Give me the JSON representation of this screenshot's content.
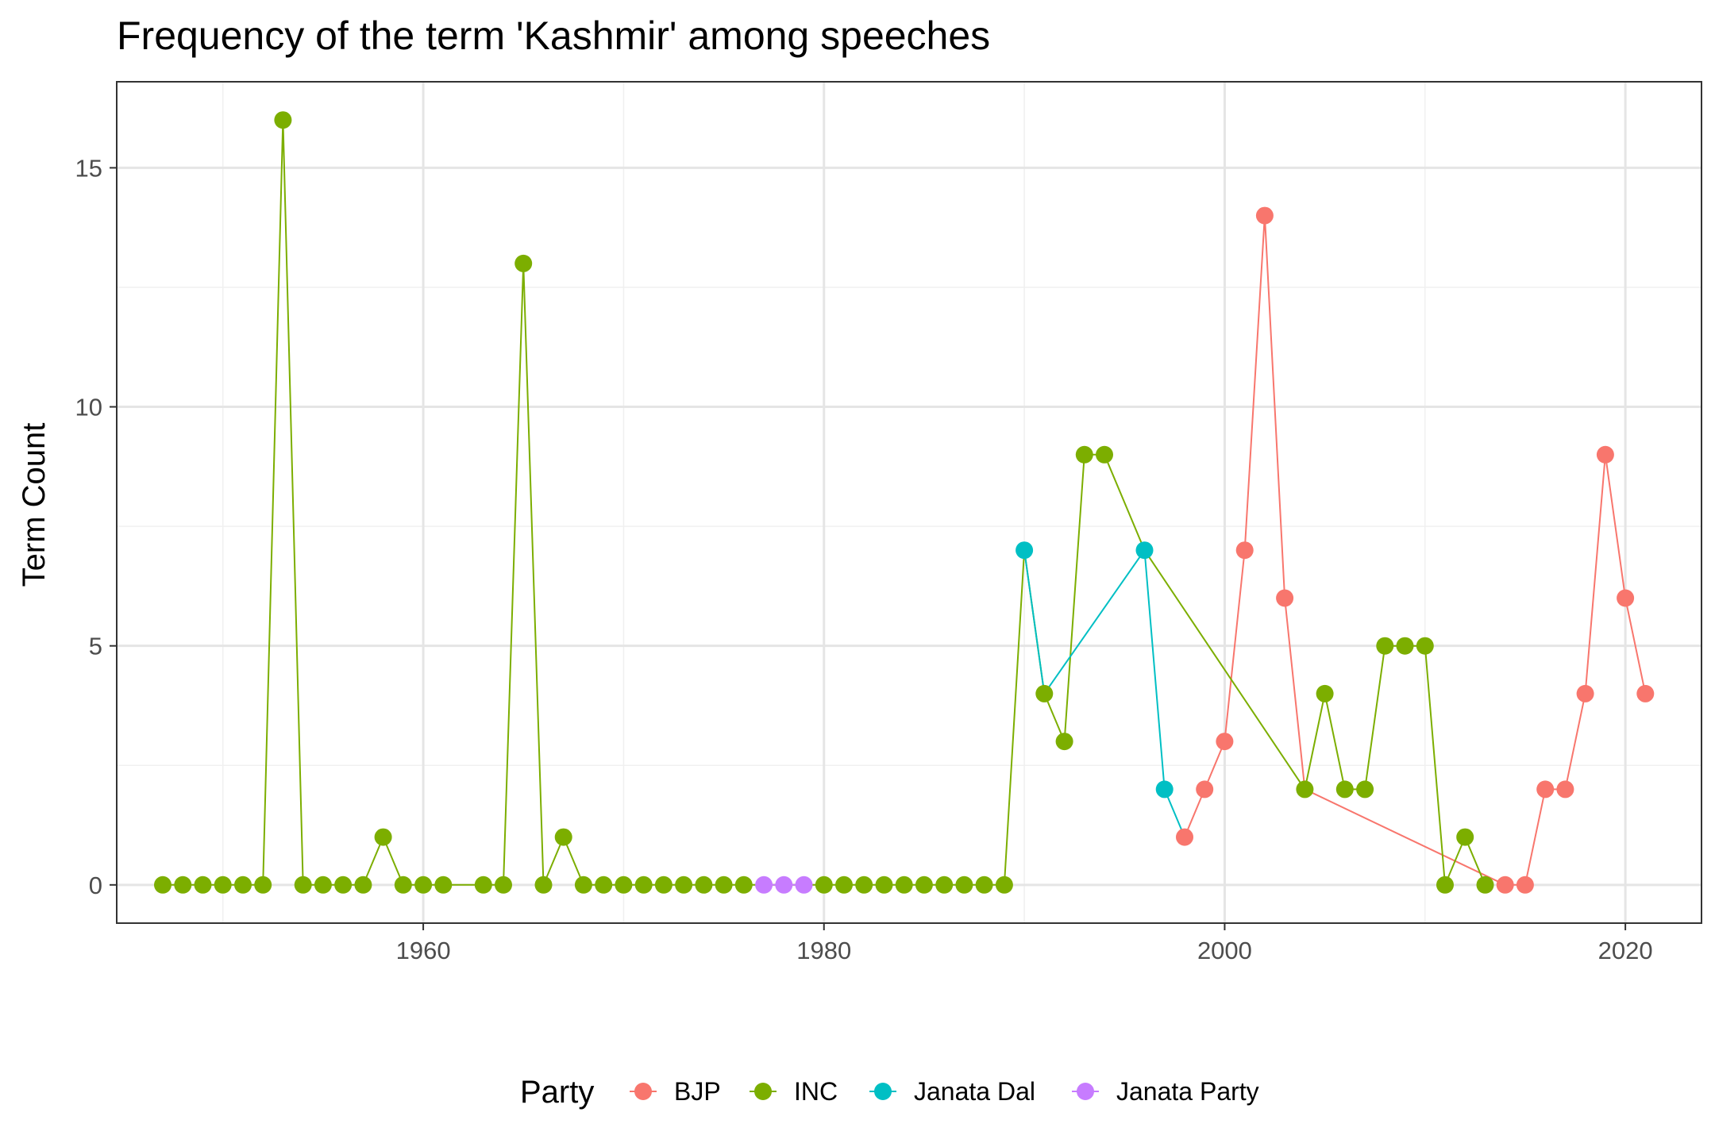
{
  "chart_data": {
    "type": "line",
    "title": "Frequency of the term 'Kashmir' among speeches",
    "xlabel": "",
    "ylabel": "Term Count",
    "xlim": [
      1944.7,
      2023.8
    ],
    "ylim": [
      -0.8,
      16.8
    ],
    "x_ticks": [
      1960,
      1980,
      2000,
      2020
    ],
    "y_ticks": [
      0,
      5,
      10,
      15
    ],
    "grid": true,
    "legend": {
      "title": "Party",
      "position": "bottom",
      "entries": [
        {
          "name": "BJP",
          "color": "#F8766D"
        },
        {
          "name": "INC",
          "color": "#7CAE00"
        },
        {
          "name": "Janata Dal",
          "color": "#00BFC4"
        },
        {
          "name": "Janata Party",
          "color": "#C77CFF"
        }
      ]
    },
    "series": [
      {
        "name": "BJP",
        "color": "#F8766D",
        "points": [
          [
            1998,
            1
          ],
          [
            1999,
            2
          ],
          [
            2000,
            3
          ],
          [
            2001,
            7
          ],
          [
            2002,
            14
          ],
          [
            2003,
            6
          ],
          [
            2004,
            2
          ],
          [
            2014,
            0
          ],
          [
            2015,
            0
          ],
          [
            2016,
            2
          ],
          [
            2017,
            2
          ],
          [
            2018,
            4
          ],
          [
            2019,
            9
          ],
          [
            2020,
            6
          ],
          [
            2021,
            4
          ]
        ]
      },
      {
        "name": "INC",
        "color": "#7CAE00",
        "points": [
          [
            1947,
            0
          ],
          [
            1948,
            0
          ],
          [
            1949,
            0
          ],
          [
            1950,
            0
          ],
          [
            1951,
            0
          ],
          [
            1952,
            0
          ],
          [
            1953,
            16
          ],
          [
            1954,
            0
          ],
          [
            1955,
            0
          ],
          [
            1956,
            0
          ],
          [
            1957,
            0
          ],
          [
            1958,
            1
          ],
          [
            1959,
            0
          ],
          [
            1960,
            0
          ],
          [
            1961,
            0
          ],
          [
            1963,
            0
          ],
          [
            1964,
            0
          ],
          [
            1965,
            13
          ],
          [
            1966,
            0
          ],
          [
            1967,
            1
          ],
          [
            1968,
            0
          ],
          [
            1969,
            0
          ],
          [
            1970,
            0
          ],
          [
            1971,
            0
          ],
          [
            1972,
            0
          ],
          [
            1973,
            0
          ],
          [
            1974,
            0
          ],
          [
            1975,
            0
          ],
          [
            1976,
            0
          ],
          [
            1980,
            0
          ],
          [
            1981,
            0
          ],
          [
            1982,
            0
          ],
          [
            1983,
            0
          ],
          [
            1984,
            0
          ],
          [
            1985,
            0
          ],
          [
            1986,
            0
          ],
          [
            1987,
            0
          ],
          [
            1988,
            0
          ],
          [
            1989,
            0
          ],
          [
            1990,
            7
          ],
          [
            1991,
            4
          ],
          [
            1992,
            3
          ],
          [
            1993,
            9
          ],
          [
            1994,
            9
          ],
          [
            1996,
            7
          ],
          [
            2004,
            2
          ],
          [
            2005,
            4
          ],
          [
            2006,
            2
          ],
          [
            2007,
            2
          ],
          [
            2008,
            5
          ],
          [
            2009,
            5
          ],
          [
            2010,
            5
          ],
          [
            2011,
            0
          ],
          [
            2012,
            1
          ],
          [
            2013,
            0
          ]
        ]
      },
      {
        "name": "Janata Dal",
        "color": "#00BFC4",
        "points": [
          [
            1990,
            7
          ],
          [
            1991,
            4
          ],
          [
            1996,
            7
          ],
          [
            1997,
            2
          ],
          [
            1998,
            1
          ]
        ]
      },
      {
        "name": "Janata Party",
        "color": "#C77CFF",
        "points": [
          [
            1977,
            0
          ],
          [
            1978,
            0
          ],
          [
            1979,
            0
          ]
        ]
      }
    ],
    "points": [
      {
        "x": 1947,
        "y": 0,
        "party": "INC"
      },
      {
        "x": 1948,
        "y": 0,
        "party": "INC"
      },
      {
        "x": 1949,
        "y": 0,
        "party": "INC"
      },
      {
        "x": 1950,
        "y": 0,
        "party": "INC"
      },
      {
        "x": 1951,
        "y": 0,
        "party": "INC"
      },
      {
        "x": 1952,
        "y": 0,
        "party": "INC"
      },
      {
        "x": 1953,
        "y": 16,
        "party": "INC"
      },
      {
        "x": 1954,
        "y": 0,
        "party": "INC"
      },
      {
        "x": 1955,
        "y": 0,
        "party": "INC"
      },
      {
        "x": 1956,
        "y": 0,
        "party": "INC"
      },
      {
        "x": 1957,
        "y": 0,
        "party": "INC"
      },
      {
        "x": 1958,
        "y": 1,
        "party": "INC"
      },
      {
        "x": 1959,
        "y": 0,
        "party": "INC"
      },
      {
        "x": 1960,
        "y": 0,
        "party": "INC"
      },
      {
        "x": 1961,
        "y": 0,
        "party": "INC"
      },
      {
        "x": 1963,
        "y": 0,
        "party": "INC"
      },
      {
        "x": 1964,
        "y": 0,
        "party": "INC"
      },
      {
        "x": 1965,
        "y": 13,
        "party": "INC"
      },
      {
        "x": 1966,
        "y": 0,
        "party": "INC"
      },
      {
        "x": 1967,
        "y": 1,
        "party": "INC"
      },
      {
        "x": 1968,
        "y": 0,
        "party": "INC"
      },
      {
        "x": 1969,
        "y": 0,
        "party": "INC"
      },
      {
        "x": 1970,
        "y": 0,
        "party": "INC"
      },
      {
        "x": 1971,
        "y": 0,
        "party": "INC"
      },
      {
        "x": 1972,
        "y": 0,
        "party": "INC"
      },
      {
        "x": 1973,
        "y": 0,
        "party": "INC"
      },
      {
        "x": 1974,
        "y": 0,
        "party": "INC"
      },
      {
        "x": 1975,
        "y": 0,
        "party": "INC"
      },
      {
        "x": 1976,
        "y": 0,
        "party": "INC"
      },
      {
        "x": 1977,
        "y": 0,
        "party": "Janata Party"
      },
      {
        "x": 1978,
        "y": 0,
        "party": "Janata Party"
      },
      {
        "x": 1979,
        "y": 0,
        "party": "Janata Party"
      },
      {
        "x": 1980,
        "y": 0,
        "party": "INC"
      },
      {
        "x": 1981,
        "y": 0,
        "party": "INC"
      },
      {
        "x": 1982,
        "y": 0,
        "party": "INC"
      },
      {
        "x": 1983,
        "y": 0,
        "party": "INC"
      },
      {
        "x": 1984,
        "y": 0,
        "party": "INC"
      },
      {
        "x": 1985,
        "y": 0,
        "party": "INC"
      },
      {
        "x": 1986,
        "y": 0,
        "party": "INC"
      },
      {
        "x": 1987,
        "y": 0,
        "party": "INC"
      },
      {
        "x": 1988,
        "y": 0,
        "party": "INC"
      },
      {
        "x": 1989,
        "y": 0,
        "party": "INC"
      },
      {
        "x": 1990,
        "y": 7,
        "party": "Janata Dal"
      },
      {
        "x": 1991,
        "y": 4,
        "party": "INC"
      },
      {
        "x": 1992,
        "y": 3,
        "party": "INC"
      },
      {
        "x": 1993,
        "y": 9,
        "party": "INC"
      },
      {
        "x": 1994,
        "y": 9,
        "party": "INC"
      },
      {
        "x": 1996,
        "y": 7,
        "party": "Janata Dal"
      },
      {
        "x": 1997,
        "y": 2,
        "party": "Janata Dal"
      },
      {
        "x": 1998,
        "y": 1,
        "party": "BJP"
      },
      {
        "x": 1999,
        "y": 2,
        "party": "BJP"
      },
      {
        "x": 2000,
        "y": 3,
        "party": "BJP"
      },
      {
        "x": 2001,
        "y": 7,
        "party": "BJP"
      },
      {
        "x": 2002,
        "y": 14,
        "party": "BJP"
      },
      {
        "x": 2003,
        "y": 6,
        "party": "BJP"
      },
      {
        "x": 2004,
        "y": 2,
        "party": "INC"
      },
      {
        "x": 2005,
        "y": 4,
        "party": "INC"
      },
      {
        "x": 2006,
        "y": 2,
        "party": "INC"
      },
      {
        "x": 2007,
        "y": 2,
        "party": "INC"
      },
      {
        "x": 2008,
        "y": 5,
        "party": "INC"
      },
      {
        "x": 2009,
        "y": 5,
        "party": "INC"
      },
      {
        "x": 2010,
        "y": 5,
        "party": "INC"
      },
      {
        "x": 2011,
        "y": 0,
        "party": "INC"
      },
      {
        "x": 2012,
        "y": 1,
        "party": "INC"
      },
      {
        "x": 2013,
        "y": 0,
        "party": "INC"
      },
      {
        "x": 2014,
        "y": 0,
        "party": "BJP"
      },
      {
        "x": 2015,
        "y": 0,
        "party": "BJP"
      },
      {
        "x": 2016,
        "y": 2,
        "party": "BJP"
      },
      {
        "x": 2017,
        "y": 2,
        "party": "BJP"
      },
      {
        "x": 2018,
        "y": 4,
        "party": "BJP"
      },
      {
        "x": 2019,
        "y": 9,
        "party": "BJP"
      },
      {
        "x": 2020,
        "y": 6,
        "party": "BJP"
      },
      {
        "x": 2021,
        "y": 4,
        "party": "BJP"
      }
    ]
  }
}
